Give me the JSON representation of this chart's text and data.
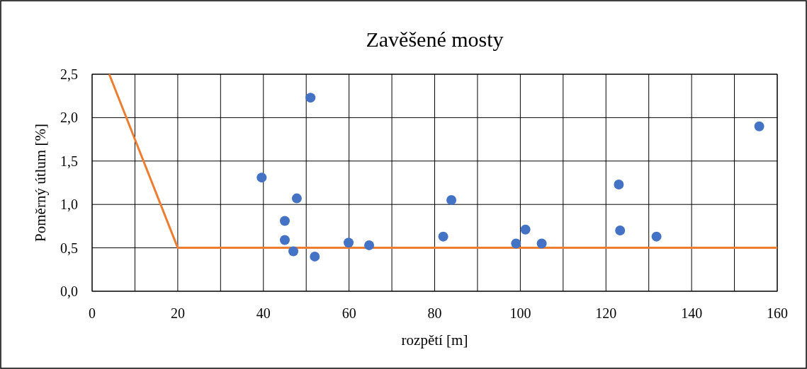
{
  "chart_data": {
    "type": "scatter",
    "title": "Zavěšené mosty",
    "xlabel": "rozpětí [m]",
    "ylabel": "Poměrný útlum [%]",
    "xlim": [
      0,
      160
    ],
    "ylim": [
      0,
      2.5
    ],
    "xticks": [
      0,
      {
        "value": 10,
        "label": null
      },
      20,
      {
        "value": 30,
        "label": null
      },
      40,
      {
        "value": 50,
        "label": null
      },
      60,
      {
        "value": 70,
        "label": null
      },
      80,
      {
        "value": 90,
        "label": null
      },
      100,
      {
        "value": 110,
        "label": null
      },
      120,
      {
        "value": 130,
        "label": null
      },
      140,
      {
        "value": 150,
        "label": null
      },
      160
    ],
    "yticks": [
      {
        "value": 0,
        "label": "0,0"
      },
      {
        "value": 0.5,
        "label": "0,5"
      },
      {
        "value": 1,
        "label": "1,0"
      },
      {
        "value": 1.5,
        "label": "1,5"
      },
      {
        "value": 2,
        "label": "2,0"
      },
      {
        "value": 2.5,
        "label": "2,5"
      }
    ],
    "grid": true,
    "marker": "circle",
    "series": [
      {
        "color": "#4472c4",
        "x": [
          39.6,
          51,
          47.8,
          45,
          45,
          47,
          52,
          59.9,
          64.7,
          82,
          83.9,
          99,
          101.2,
          105,
          123,
          123.3,
          131.8,
          155.8
        ],
        "values": [
          1.31,
          2.23,
          1.07,
          0.81,
          0.59,
          0.46,
          0.4,
          0.56,
          0.53,
          0.63,
          1.05,
          0.55,
          0.71,
          0.55,
          1.23,
          0.7,
          0.63,
          1.9
        ]
      },
      {
        "type": "line",
        "color": "#ed7d31",
        "marker": "none",
        "x": [
          4,
          20,
          160
        ],
        "values": [
          2.5,
          0.5,
          0.5
        ]
      }
    ]
  }
}
